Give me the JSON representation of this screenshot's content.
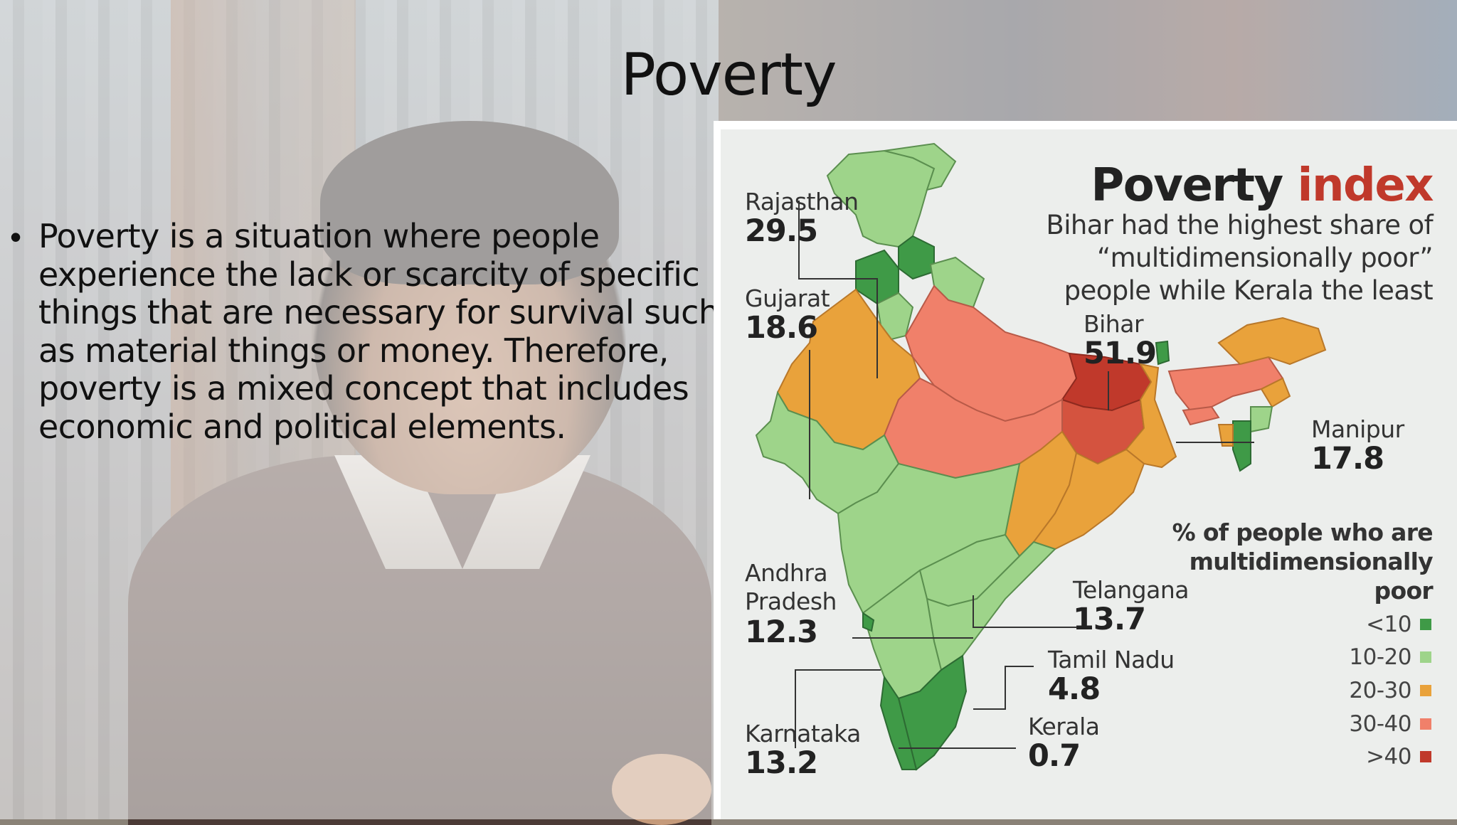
{
  "slide": {
    "title": "Poverty",
    "bullet": "Poverty is a situation where people experience the lack or scarcity of specific things that are necessary for survival such as material things or money. Therefore, poverty is a mixed concept that includes economic and political elements."
  },
  "infographic": {
    "title_main": "Poverty",
    "title_highlight": "index",
    "subtitle": "Bihar had the highest share of “multidimensionally poor” people while Kerala the least",
    "legend_title": "% of people who are multidimensionally poor",
    "legend": [
      {
        "label": "<10",
        "color": "#3f9a47"
      },
      {
        "label": "10-20",
        "color": "#9ed48a"
      },
      {
        "label": "20-30",
        "color": "#e9a23b"
      },
      {
        "label": "30-40",
        "color": "#f0806a"
      },
      {
        "label": ">40",
        "color": "#c0392b"
      }
    ],
    "states": {
      "rajasthan": {
        "name": "Rajasthan",
        "value": "29.5"
      },
      "gujarat": {
        "name": "Gujarat",
        "value": "18.6"
      },
      "bihar": {
        "name": "Bihar",
        "value": "51.9"
      },
      "manipur": {
        "name": "Manipur",
        "value": "17.8"
      },
      "andhra": {
        "name": "Andhra Pradesh",
        "name_line1": "Andhra",
        "name_line2": "Pradesh",
        "value": "12.3"
      },
      "telangana": {
        "name": "Telangana",
        "value": "13.7"
      },
      "tamilnadu": {
        "name": "Tamil Nadu",
        "value": "4.8"
      },
      "karnataka": {
        "name": "Karnataka",
        "value": "13.2"
      },
      "kerala": {
        "name": "Kerala",
        "value": "0.7"
      }
    }
  }
}
